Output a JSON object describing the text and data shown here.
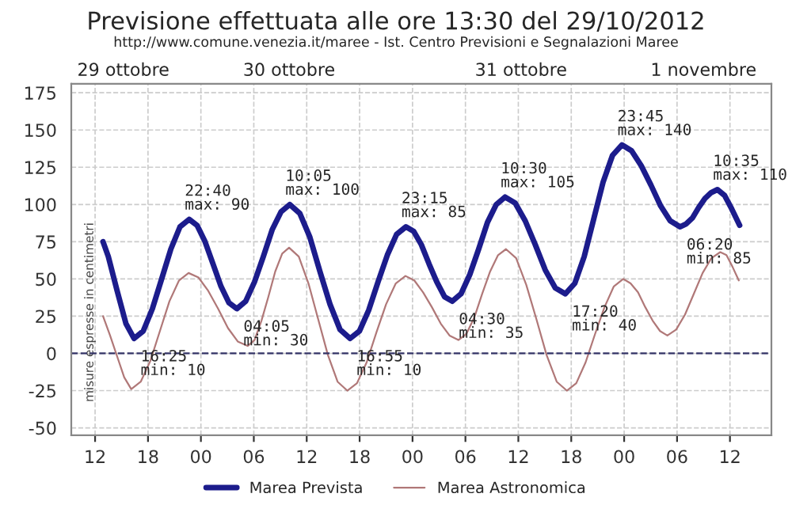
{
  "chart_data": {
    "type": "line",
    "title": "Previsione effettuata alle ore 13:30 del 29/10/2012",
    "subtitle": "http://www.comune.venezia.it/maree - Ist. Centro Previsioni e Segnalazioni Maree",
    "ylabel": "misure espresse in centimetri",
    "series": [
      {
        "name": "Marea Prevista",
        "color": "#1c1c8c",
        "x": [
          12.9,
          13.5,
          14.5,
          15.5,
          16.42,
          17.46,
          18.5,
          19.55,
          20.59,
          21.63,
          22.67,
          23.57,
          24.47,
          25.38,
          26.28,
          27.18,
          28.08,
          29.08,
          30.08,
          31.08,
          32.08,
          33.08,
          34.08,
          35.22,
          36.36,
          37.5,
          38.64,
          39.78,
          40.92,
          41.98,
          43.03,
          44.09,
          45.14,
          46.2,
          47.25,
          48.13,
          49.0,
          49.88,
          50.75,
          51.63,
          52.5,
          53.5,
          54.5,
          55.5,
          56.5,
          57.5,
          58.5,
          59.64,
          60.78,
          61.92,
          63.05,
          64.19,
          65.33,
          66.4,
          67.47,
          68.54,
          69.61,
          70.68,
          71.75,
          72.85,
          73.94,
          75.04,
          76.14,
          77.23,
          78.33,
          79.04,
          79.75,
          80.46,
          81.16,
          81.87,
          82.58,
          83.4,
          84.2,
          85.1
        ],
        "values": [
          75,
          65,
          42,
          20,
          10,
          15,
          30,
          50,
          70,
          85,
          90,
          86,
          75,
          60,
          45,
          34,
          30,
          35,
          48,
          65,
          83,
          95,
          100,
          94,
          78,
          55,
          33,
          16,
          10,
          15,
          29,
          48,
          66,
          80,
          85,
          82,
          73,
          60,
          48,
          38,
          35,
          40,
          53,
          70,
          88,
          100,
          105,
          101,
          89,
          73,
          56,
          44,
          40,
          47,
          65,
          90,
          115,
          133,
          140,
          136,
          126,
          113,
          99,
          89,
          85,
          87,
          91,
          98,
          104,
          108,
          110,
          106,
          97,
          86
        ]
      },
      {
        "name": "Marea Astronomica",
        "color": "#b07878",
        "x": [
          12.9,
          13.7,
          14.5,
          15.3,
          16.1,
          17.18,
          18.27,
          19.35,
          20.43,
          21.52,
          22.6,
          23.72,
          24.83,
          25.95,
          27.07,
          28.18,
          29.3,
          30.08,
          30.87,
          31.65,
          32.43,
          33.22,
          34.0,
          35.1,
          36.2,
          37.3,
          38.4,
          39.5,
          40.6,
          41.7,
          42.8,
          43.9,
          45.0,
          46.1,
          47.2,
          48.2,
          49.2,
          50.2,
          51.2,
          52.2,
          53.2,
          54.1,
          55.0,
          55.9,
          56.8,
          57.7,
          58.6,
          59.75,
          60.9,
          62.05,
          63.2,
          64.35,
          65.5,
          66.57,
          67.63,
          68.7,
          69.77,
          70.83,
          71.9,
          72.73,
          73.57,
          74.4,
          75.23,
          76.07,
          76.9,
          77.9,
          78.9,
          79.9,
          80.9,
          81.9,
          82.9,
          83.6,
          84.3,
          85.0
        ],
        "values": [
          25,
          12,
          -2,
          -16,
          -24,
          -19,
          -5,
          15,
          35,
          49,
          54,
          51,
          42,
          30,
          17,
          8,
          5,
          9,
          22,
          38,
          55,
          67,
          71,
          65,
          47,
          23,
          -1,
          -19,
          -25,
          -20,
          -6,
          14,
          33,
          47,
          52,
          49,
          41,
          31,
          20,
          12,
          9,
          13,
          24,
          40,
          55,
          66,
          70,
          64,
          46,
          23,
          -1,
          -19,
          -25,
          -20,
          -6,
          13,
          31,
          45,
          50,
          47,
          41,
          31,
          22,
          15,
          12,
          16,
          26,
          40,
          54,
          64,
          68,
          66,
          58,
          49
        ]
      }
    ],
    "annotations": [
      {
        "text": "16:25\nmin: 10",
        "x": 16.42,
        "y": 10
      },
      {
        "text": "22:40\nmax: 90",
        "x": 22.67,
        "y": 90
      },
      {
        "text": "04:05\nmin: 30",
        "x": 28.08,
        "y": 30
      },
      {
        "text": "10:05\nmax: 100",
        "x": 34.08,
        "y": 100
      },
      {
        "text": "16:55\nmin: 10",
        "x": 40.92,
        "y": 10
      },
      {
        "text": "23:15\nmax: 85",
        "x": 47.25,
        "y": 85
      },
      {
        "text": "04:30\nmin: 35",
        "x": 52.5,
        "y": 35
      },
      {
        "text": "10:30\nmax: 105",
        "x": 58.5,
        "y": 105
      },
      {
        "text": "17:20\nmin: 40",
        "x": 65.33,
        "y": 40
      },
      {
        "text": "23:45\nmax: 140",
        "x": 71.75,
        "y": 140
      },
      {
        "text": "06:20\nmin: 85",
        "x": 78.33,
        "y": 85
      },
      {
        "text": "10:35\nmax: 110",
        "x": 82.58,
        "y": 110
      }
    ],
    "xlim": [
      9.3,
      88.7
    ],
    "xticks": [
      12,
      18,
      {
        "value": 24,
        "label": "00"
      },
      {
        "value": 30,
        "label": "06"
      },
      {
        "value": 36,
        "label": "12"
      },
      {
        "value": 42,
        "label": "18"
      },
      {
        "value": 48,
        "label": "00"
      },
      {
        "value": 54,
        "label": "06"
      },
      {
        "value": 60,
        "label": "12"
      },
      {
        "value": 66,
        "label": "18"
      },
      {
        "value": 72,
        "label": "00"
      },
      {
        "value": 78,
        "label": "06"
      },
      {
        "value": 84,
        "label": "12"
      }
    ],
    "x2lim": [
      "2012-10-29T09:18",
      "2012-11-01T16:42"
    ],
    "x2ticks": [
      {
        "value": "2012-10-29T15:12",
        "label": "29 ottobre"
      },
      {
        "value": "2012-10-30T10:00",
        "label": "30 ottobre"
      },
      {
        "value": "2012-10-31T12:18",
        "label": "31 ottobre"
      },
      {
        "value": "2012-11-01T09:00",
        "label": "1 novembre"
      }
    ],
    "ylim": [
      -55,
      181
    ],
    "yticks": [
      -50,
      -25,
      0,
      25,
      50,
      75,
      100,
      125,
      150,
      175
    ],
    "ref_lines": [
      {
        "axis": "y",
        "value": 0,
        "color": "#333366",
        "line_style": "dashed"
      }
    ],
    "grid": true,
    "legend": "bottom",
    "marker": "none",
    "line_style": "solid"
  }
}
